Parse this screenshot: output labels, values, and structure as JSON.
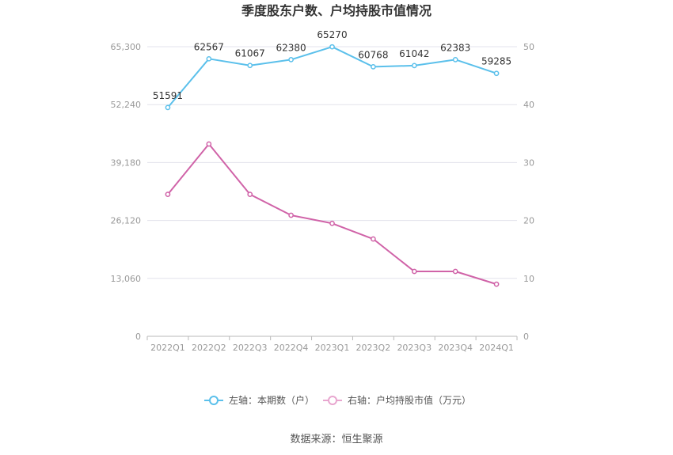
{
  "chart_data": {
    "type": "line",
    "title": "季度股东户数、户均持股市值情况",
    "categories": [
      "2022Q1",
      "2022Q2",
      "2022Q3",
      "2022Q4",
      "2023Q1",
      "2023Q2",
      "2023Q3",
      "2023Q4",
      "2024Q1"
    ],
    "left_axis": {
      "ticks": [
        "0",
        "13,060",
        "26,120",
        "39,180",
        "52,240",
        "65,300"
      ],
      "ylim": [
        0,
        65300
      ]
    },
    "right_axis": {
      "ticks": [
        "0",
        "10",
        "20",
        "30",
        "40",
        "50"
      ],
      "ylim": [
        0,
        50
      ]
    },
    "series": [
      {
        "name": "左轴：本期数（户）",
        "axis": "left",
        "color": "#5bc0eb",
        "values": [
          51591,
          62567,
          61067,
          62380,
          65270,
          60768,
          61042,
          62383,
          59285
        ],
        "labels": [
          "51591",
          "62567",
          "61067",
          "62380",
          "65270",
          "60768",
          "61042",
          "62383",
          "59285"
        ]
      },
      {
        "name": "右轴：户均持股市值（万元）",
        "axis": "right",
        "color": "#d063a8",
        "values": [
          24.5,
          33.2,
          24.5,
          20.9,
          19.5,
          16.8,
          11.2,
          11.2,
          9.0
        ]
      }
    ],
    "grid": true,
    "legend": "bottom"
  },
  "source": "数据来源：恒生聚源"
}
